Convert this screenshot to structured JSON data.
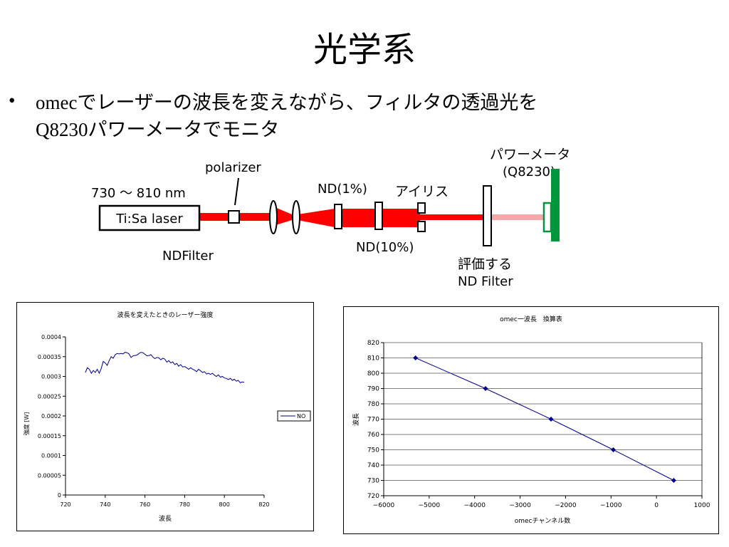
{
  "slide": {
    "title": "光学系",
    "bullet": {
      "line1": "omecでレーザーの波長を変えながら、フィルタの透過光を",
      "line2": "Q8230パワーメータでモニタ"
    }
  },
  "diagram": {
    "range_label": "730 ～ 810 nm",
    "laser_label": "Ti:Sa laser",
    "ndfilter_label": "NDFilter",
    "polarizer_label": "polarizer",
    "nd1_label": "ND(1%)",
    "nd10_label": "ND(10%)",
    "iris_label": "アイリス",
    "meter_label": "パワーメータ",
    "meter_model": "(Q8230)",
    "eval_label1": "評価する",
    "eval_label2": "ND Filter",
    "colors": {
      "beam": "#ff0000",
      "beam_pink": "#f4a9a8",
      "meter": "#00963c"
    }
  },
  "chart_data": [
    {
      "type": "line",
      "title": "波長を変えたときのレーザー強度",
      "xlabel": "波長",
      "ylabel": "強度 [W]",
      "xlim": [
        720,
        820
      ],
      "ylim": [
        0,
        0.0004
      ],
      "xticks": [
        "720",
        "740",
        "760",
        "780",
        "800",
        "820"
      ],
      "yticks": [
        "0",
        "0.00005",
        "0.0001",
        "0.00015",
        "0.0002",
        "0.00025",
        "0.0003",
        "0.00035",
        "0.0004"
      ],
      "legend": "top-right-outside",
      "series": [
        {
          "name": "NO",
          "color": "#00008b",
          "x": [
            730,
            731,
            732,
            733,
            734,
            735,
            736,
            737,
            738,
            739,
            740,
            741,
            742,
            743,
            744,
            745,
            746,
            747,
            748,
            749,
            750,
            751,
            752,
            753,
            754,
            755,
            756,
            757,
            758,
            759,
            760,
            761,
            762,
            763,
            764,
            765,
            766,
            767,
            768,
            769,
            770,
            771,
            772,
            773,
            774,
            775,
            776,
            777,
            778,
            779,
            780,
            781,
            782,
            783,
            784,
            785,
            786,
            787,
            788,
            789,
            790,
            791,
            792,
            793,
            794,
            795,
            796,
            797,
            798,
            799,
            800,
            801,
            802,
            803,
            804,
            805,
            806,
            807,
            808,
            809,
            810
          ],
          "y": [
            0.00031,
            0.000322,
            0.000318,
            0.000308,
            0.000315,
            0.00031,
            0.000318,
            0.000308,
            0.00032,
            0.000338,
            0.000334,
            0.000328,
            0.00034,
            0.00035,
            0.000346,
            0.000355,
            0.000358,
            0.000357,
            0.000358,
            0.000357,
            0.000361,
            0.00036,
            0.000357,
            0.000348,
            0.000352,
            0.000353,
            0.000354,
            0.000358,
            0.000361,
            0.00036,
            0.000356,
            0.000352,
            0.000353,
            0.000355,
            0.000349,
            0.000345,
            0.000348,
            0.000347,
            0.000342,
            0.000346,
            0.000344,
            0.000336,
            0.00034,
            0.000334,
            0.000337,
            0.00033,
            0.000333,
            0.000326,
            0.00033,
            0.000324,
            0.000325,
            0.000322,
            0.000318,
            0.000322,
            0.000318,
            0.000316,
            0.000312,
            0.000318,
            0.000314,
            0.00031,
            0.000312,
            0.000306,
            0.000308,
            0.000305,
            0.000308,
            0.000303,
            0.0003,
            0.000304,
            0.000298,
            0.0003,
            0.000296,
            0.000295,
            0.000292,
            0.000295,
            0.00029,
            0.000293,
            0.000288,
            0.00029,
            0.000284,
            0.000286,
            0.000285
          ]
        }
      ]
    },
    {
      "type": "line",
      "title": "omec一波長　換算表",
      "xlabel": "omecチャンネル数",
      "ylabel": "波長",
      "xlim": [
        -6000,
        1000
      ],
      "ylim": [
        720,
        820
      ],
      "xticks": [
        "−6000",
        "−5000",
        "−4000",
        "−3000",
        "−2000",
        "−1000",
        "0",
        "1000"
      ],
      "yticks": [
        "720",
        "730",
        "740",
        "750",
        "760",
        "770",
        "780",
        "790",
        "800",
        "810",
        "820"
      ],
      "series": [
        {
          "color": "#00008b",
          "x": [
            -5300,
            -3760,
            -2320,
            -950,
            380
          ],
          "y": [
            810,
            790,
            770,
            750,
            730
          ]
        }
      ]
    }
  ]
}
